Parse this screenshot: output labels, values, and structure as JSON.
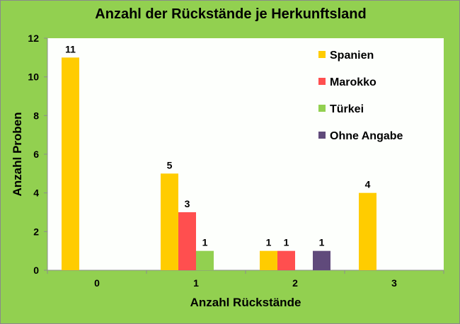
{
  "chart_data": {
    "type": "bar",
    "title": "Anzahl der Rückstände je Herkunftsland",
    "xlabel": "Anzahl Rückstände",
    "ylabel": "Anzahl Proben",
    "categories": [
      "0",
      "1",
      "2",
      "3"
    ],
    "ylim": [
      0,
      12
    ],
    "yticks": [
      "0",
      "2",
      "4",
      "6",
      "8",
      "10",
      "12"
    ],
    "legend_position": "top-right",
    "series": [
      {
        "name": "Spanien",
        "color": "#FFCC00",
        "values": [
          11,
          5,
          1,
          4
        ]
      },
      {
        "name": "Marokko",
        "color": "#FF4F4F",
        "values": [
          0,
          3,
          1,
          0
        ]
      },
      {
        "name": "Türkei",
        "color": "#92D050",
        "values": [
          0,
          1,
          0,
          0
        ]
      },
      {
        "name": "Ohne Angabe",
        "color": "#604A7B",
        "values": [
          0,
          0,
          1,
          0
        ]
      }
    ]
  }
}
